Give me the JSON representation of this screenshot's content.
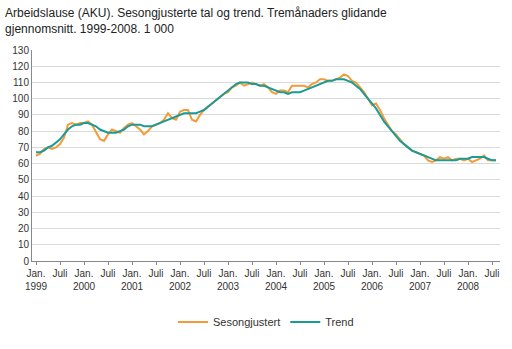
{
  "chart_data": {
    "type": "line",
    "title": "Arbeidslause (AKU). Sesongjusterte tal og trend. Tremånaders glidande\ngjennomsnitt. 1999-2008. 1 000",
    "categories": [
      "Jan. 1999",
      null,
      null,
      null,
      null,
      null,
      "Juli",
      null,
      null,
      null,
      null,
      null,
      "Jan. 2000",
      null,
      null,
      null,
      null,
      null,
      "Juli",
      null,
      null,
      null,
      null,
      null,
      "Jan. 2001",
      null,
      null,
      null,
      null,
      null,
      "Juli",
      null,
      null,
      null,
      null,
      null,
      "Jan. 2002",
      null,
      null,
      null,
      null,
      null,
      "Juli",
      null,
      null,
      null,
      null,
      null,
      "Jan. 2003",
      null,
      null,
      null,
      null,
      null,
      "Juli",
      null,
      null,
      null,
      null,
      null,
      "Jan. 2004",
      null,
      null,
      null,
      null,
      null,
      "Juli",
      null,
      null,
      null,
      null,
      null,
      "Jan. 2005",
      null,
      null,
      null,
      null,
      null,
      "Juli",
      null,
      null,
      null,
      null,
      null,
      "Jan. 2006",
      null,
      null,
      null,
      null,
      null,
      "Juli",
      null,
      null,
      null,
      null,
      null,
      "Jan. 2007",
      null,
      null,
      null,
      null,
      null,
      "Juli",
      null,
      null,
      null,
      null,
      null,
      "Jan. 2008",
      null,
      null,
      null,
      null,
      null,
      "Juli",
      null
    ],
    "series": [
      {
        "name": "Sesongjustert",
        "color": "#f29b38",
        "values": [
          65,
          66,
          69,
          70,
          69,
          70,
          72,
          76,
          84,
          85,
          84,
          85,
          85,
          86,
          84,
          79,
          75,
          74,
          78,
          81,
          80,
          79,
          82,
          84,
          85,
          83,
          81,
          78,
          80,
          83,
          84,
          85,
          87,
          91,
          88,
          87,
          92,
          93,
          93,
          87,
          86,
          90,
          93,
          95,
          97,
          99,
          101,
          103,
          104,
          107,
          108,
          110,
          108,
          109,
          110,
          109,
          108,
          109,
          107,
          104,
          103,
          105,
          105,
          104,
          108,
          108,
          108,
          108,
          107,
          109,
          110,
          112,
          112,
          111,
          111,
          112,
          113,
          115,
          114,
          111,
          110,
          107,
          104,
          100,
          96,
          97,
          93,
          88,
          84,
          80,
          78,
          75,
          72,
          70,
          68,
          67,
          66,
          65,
          62,
          61,
          62,
          64,
          63,
          64,
          62,
          63,
          63,
          62,
          63,
          61,
          62,
          63,
          65,
          62,
          62,
          62
        ]
      },
      {
        "name": "Trend",
        "color": "#1b9a96",
        "values": [
          67,
          67,
          68,
          70,
          71,
          73,
          75,
          78,
          81,
          83,
          84,
          84,
          85,
          85,
          84,
          83,
          81,
          80,
          79,
          79,
          79,
          80,
          81,
          83,
          84,
          84,
          84,
          83,
          83,
          83,
          84,
          85,
          86,
          87,
          88,
          89,
          90,
          91,
          91,
          91,
          91,
          92,
          93,
          95,
          97,
          99,
          101,
          103,
          105,
          107,
          109,
          110,
          110,
          110,
          109,
          109,
          108,
          108,
          107,
          106,
          105,
          104,
          104,
          103,
          104,
          104,
          104,
          105,
          106,
          107,
          108,
          109,
          110,
          111,
          111,
          112,
          112,
          112,
          111,
          110,
          108,
          106,
          103,
          100,
          97,
          94,
          90,
          86,
          83,
          80,
          77,
          74,
          72,
          70,
          68,
          67,
          66,
          65,
          64,
          63,
          62,
          62,
          62,
          62,
          62,
          62,
          63,
          63,
          63,
          64,
          64,
          64,
          64,
          63,
          62,
          62
        ]
      }
    ],
    "ylim": [
      0,
      130
    ],
    "yticks": [
      0,
      10,
      20,
      30,
      40,
      50,
      60,
      70,
      80,
      90,
      100,
      110,
      120,
      130
    ],
    "grid": true,
    "legend": "bottom"
  }
}
